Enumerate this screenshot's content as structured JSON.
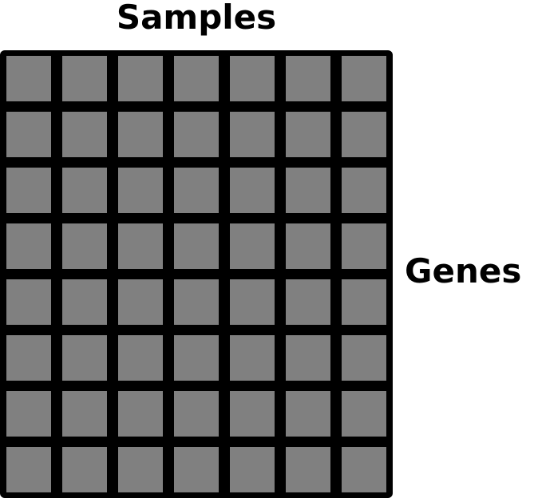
{
  "labels": {
    "columns_axis": "Samples",
    "rows_axis": "Genes"
  },
  "matrix": {
    "columns": 7,
    "rows": 8,
    "cell_color": "#808080",
    "border_color": "#000000"
  }
}
